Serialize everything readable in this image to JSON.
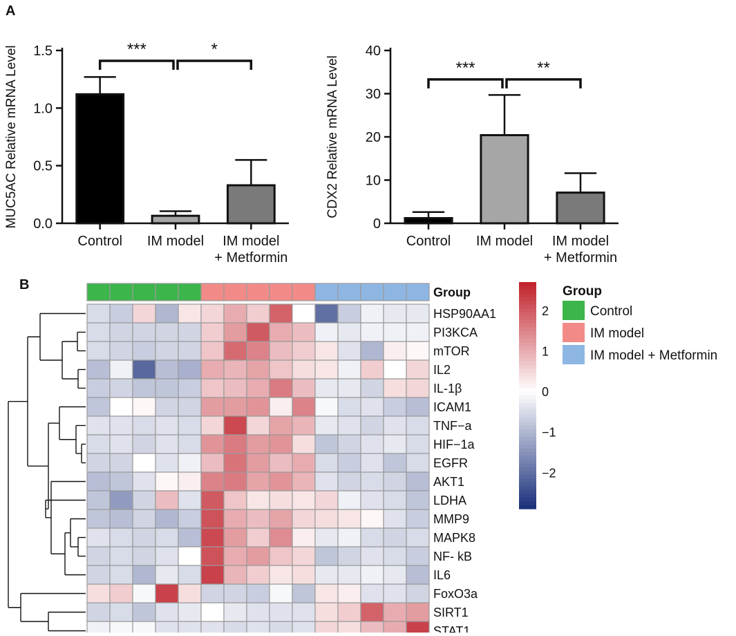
{
  "panel_labels": {
    "a": "A",
    "b": "B"
  },
  "chart_data": [
    {
      "type": "bar",
      "panel": "A-left",
      "categories": [
        "Control",
        "IM model",
        "IM model\n+ Metformin"
      ],
      "values": [
        1.12,
        0.065,
        0.33
      ],
      "errors": [
        0.15,
        0.04,
        0.22
      ],
      "bar_colors": [
        "#000000",
        "#a6a6a6",
        "#7a7a7a"
      ],
      "ylabel": "MUC5AC Relative mRNA Level",
      "xlabel": "",
      "ylim": [
        0,
        1.5
      ],
      "yticks": [
        "0.0",
        "0.5",
        "1.0",
        "1.5"
      ],
      "ytick_values": [
        0,
        0.5,
        1.0,
        1.5
      ],
      "significance": [
        {
          "from": 0,
          "to": 1,
          "label": "***",
          "level": 1.41
        },
        {
          "from": 1,
          "to": 2,
          "label": "*",
          "level": 1.41
        }
      ]
    },
    {
      "type": "bar",
      "panel": "A-right",
      "categories": [
        "Control",
        "IM model",
        "IM model\n+ Metformin"
      ],
      "values": [
        1.2,
        20.4,
        7.1
      ],
      "errors": [
        1.4,
        9.3,
        4.5
      ],
      "bar_colors": [
        "#000000",
        "#a6a6a6",
        "#7a7a7a"
      ],
      "ylabel": "CDX2 Relative mRNA Level",
      "xlabel": "",
      "ylim": [
        0,
        40
      ],
      "yticks": [
        "0",
        "10",
        "20",
        "30",
        "40"
      ],
      "ytick_values": [
        0,
        10,
        20,
        30,
        40
      ],
      "significance": [
        {
          "from": 0,
          "to": 1,
          "label": "***",
          "level": 33.3
        },
        {
          "from": 1,
          "to": 2,
          "label": "**",
          "level": 33.3
        }
      ]
    },
    {
      "type": "heatmap",
      "panel": "B",
      "group_title": "Group",
      "groups": [
        {
          "name": "Control",
          "color": "#3cb54a",
          "count": 5
        },
        {
          "name": "IM model",
          "color": "#f28b88",
          "count": 5
        },
        {
          "name": "IM model + Metformin",
          "color": "#8eb6e3",
          "count": 5
        }
      ],
      "rows": [
        "HSP90AA1",
        "PI3KCA",
        "mTOR",
        "IL2",
        "IL-1β",
        "ICAM1",
        "TNF−a",
        "HIF−1a",
        "EGFR",
        "AKT1",
        "LDHA",
        "MMP9",
        "MAPK8",
        "NF- kB",
        "IL6",
        "FoxO3a",
        "SIRT1",
        "STAT1"
      ],
      "values": [
        [
          -0.5,
          -0.7,
          0.5,
          -1.0,
          0.3,
          0.5,
          1.0,
          0.6,
          1.9,
          0.0,
          -2.0,
          -0.7,
          -0.2,
          -0.3,
          -0.3
        ],
        [
          -0.5,
          -0.6,
          -0.6,
          -0.6,
          -0.6,
          0.6,
          1.2,
          2.0,
          1.0,
          0.8,
          -0.2,
          -0.3,
          -0.2,
          -0.2,
          -0.2
        ],
        [
          -0.5,
          -0.6,
          -0.7,
          -0.6,
          -0.6,
          0.7,
          1.8,
          1.5,
          0.8,
          0.6,
          0.3,
          -0.4,
          -1.0,
          0.2,
          0.1
        ],
        [
          -0.9,
          -0.2,
          -2.1,
          -0.9,
          -1.1,
          1.0,
          0.9,
          1.1,
          0.7,
          0.4,
          0.3,
          -0.2,
          0.6,
          0.0,
          0.5
        ],
        [
          -0.7,
          -0.6,
          -0.8,
          -0.8,
          -0.7,
          0.7,
          0.8,
          1.0,
          1.6,
          0.8,
          -0.3,
          -0.3,
          -0.6,
          0.4,
          0.5
        ],
        [
          -0.8,
          0.0,
          0.1,
          -0.6,
          -0.6,
          1.2,
          1.2,
          1.3,
          0.2,
          1.5,
          -0.1,
          -0.5,
          -0.4,
          -0.7,
          -0.9
        ],
        [
          -0.4,
          -0.4,
          -0.5,
          -0.4,
          -0.5,
          0.5,
          2.2,
          0.5,
          1.1,
          0.9,
          -0.3,
          -0.4,
          -0.6,
          -0.4,
          -0.5
        ],
        [
          -0.5,
          -0.4,
          -0.6,
          -0.4,
          -0.5,
          1.3,
          1.6,
          1.2,
          1.3,
          0.4,
          -0.8,
          -0.6,
          -0.4,
          -0.3,
          -0.5
        ],
        [
          -0.6,
          -0.6,
          0.0,
          -0.4,
          -0.2,
          0.8,
          1.7,
          1.2,
          0.8,
          1.0,
          -0.5,
          -0.7,
          -0.4,
          -0.8,
          -0.5
        ],
        [
          -0.9,
          -0.8,
          -0.4,
          0.1,
          0.2,
          1.5,
          1.6,
          1.1,
          1.3,
          0.9,
          -0.4,
          -0.6,
          -0.5,
          -0.6,
          -0.9
        ],
        [
          -0.8,
          -1.4,
          -0.6,
          0.8,
          -0.4,
          2.0,
          0.7,
          0.3,
          0.4,
          0.3,
          0.5,
          -0.2,
          -0.4,
          -0.5,
          -0.8
        ],
        [
          -0.8,
          -0.9,
          -0.6,
          -1.0,
          -0.7,
          2.1,
          1.0,
          0.8,
          1.1,
          0.5,
          0.4,
          0.3,
          0.1,
          -0.4,
          -0.7
        ],
        [
          -0.4,
          -0.5,
          -0.6,
          -0.5,
          -0.9,
          2.2,
          1.2,
          0.6,
          1.4,
          0.2,
          -0.3,
          -0.2,
          -0.5,
          -0.6,
          -0.5
        ],
        [
          -0.6,
          -0.5,
          -0.6,
          -0.4,
          0.0,
          2.1,
          1.0,
          1.2,
          0.7,
          0.5,
          -0.8,
          -0.6,
          -0.4,
          -0.5,
          -0.7
        ],
        [
          -0.6,
          -0.5,
          -1.0,
          -0.3,
          -0.5,
          2.3,
          0.9,
          0.6,
          0.3,
          0.4,
          -0.3,
          -0.3,
          -0.2,
          -0.3,
          -0.9
        ],
        [
          0.4,
          0.6,
          -0.1,
          2.3,
          0.4,
          -0.6,
          -0.6,
          -0.7,
          -0.1,
          -0.8,
          0.3,
          0.2,
          -0.4,
          -0.4,
          -0.6
        ],
        [
          -0.6,
          -0.5,
          -0.8,
          -0.4,
          -0.3,
          0.0,
          -0.3,
          -0.4,
          -0.4,
          -0.4,
          0.4,
          0.6,
          1.9,
          1.0,
          1.2
        ],
        [
          -0.2,
          -0.1,
          -0.1,
          -0.4,
          -0.4,
          -0.4,
          -0.5,
          -0.4,
          -0.5,
          -0.4,
          0.5,
          0.4,
          0.8,
          1.0,
          2.3
        ]
      ],
      "colorbar": {
        "range": [
          -2.9,
          2.7
        ],
        "ticks": [
          "2",
          "1",
          "0",
          "−1",
          "−2"
        ],
        "tick_values": [
          2,
          1,
          0,
          -1,
          -2
        ],
        "low_color": "#1a2f7a",
        "mid_color": "#ffffff",
        "high_color": "#c0202a"
      }
    }
  ]
}
